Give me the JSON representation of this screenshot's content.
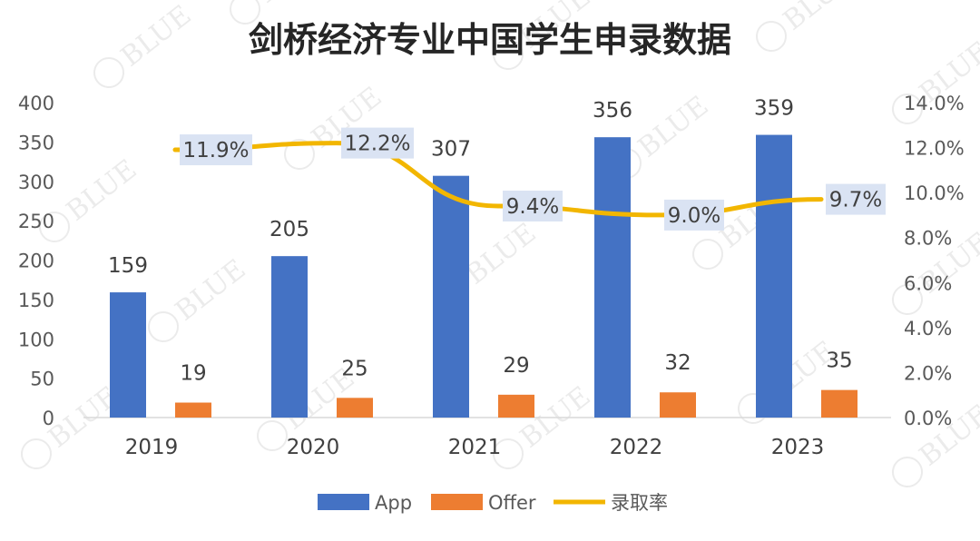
{
  "chart_data": {
    "type": "bar",
    "title": "剑桥经济专业中国学生申录数据",
    "categories": [
      "2019",
      "2020",
      "2021",
      "2022",
      "2023"
    ],
    "series": [
      {
        "name": "App",
        "type": "bar",
        "axis": "left",
        "color": "#4472C4",
        "values": [
          159,
          205,
          307,
          356,
          359
        ]
      },
      {
        "name": "Offer",
        "type": "bar",
        "axis": "left",
        "color": "#ED7D31",
        "values": [
          19,
          25,
          29,
          32,
          35
        ]
      },
      {
        "name": "录取率",
        "type": "line",
        "axis": "right",
        "color": "#F2B600",
        "values": [
          11.9,
          12.2,
          9.4,
          9.0,
          9.7
        ],
        "labels": [
          "11.9%",
          "12.2%",
          "9.4%",
          "9.0%",
          "9.7%"
        ]
      }
    ],
    "y_left": {
      "min": 0,
      "max": 400,
      "ticks": [
        "0",
        "50",
        "100",
        "150",
        "200",
        "250",
        "300",
        "350",
        "400"
      ]
    },
    "y_right": {
      "min": 0,
      "max": 14,
      "ticks": [
        "0.0%",
        "2.0%",
        "4.0%",
        "6.0%",
        "8.0%",
        "10.0%",
        "12.0%",
        "14.0%"
      ]
    },
    "grid": false,
    "legend": "bottom"
  },
  "watermark": "BLUE"
}
